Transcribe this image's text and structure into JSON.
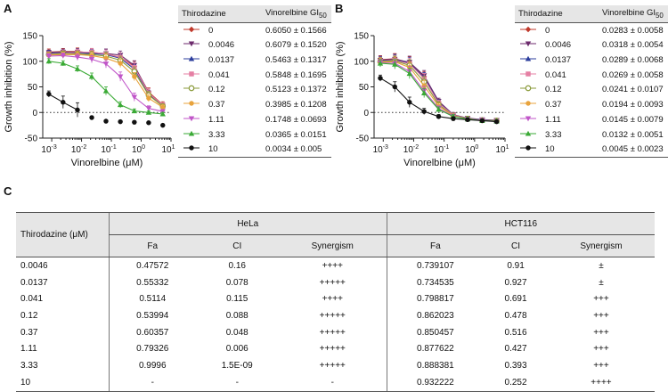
{
  "panels": {
    "a": "A",
    "b": "B",
    "c": "C"
  },
  "chart_data": [
    {
      "type": "line",
      "panel": "A",
      "ylabel": "Growth inhibition (%)",
      "xlabel": "Vinorelbine (μM)",
      "xscale": "log",
      "xlim": [
        0.0005,
        10
      ],
      "ylim": [
        -50,
        150
      ],
      "yticks": [
        -50,
        0,
        50,
        100,
        150
      ],
      "xticks": [
        {
          "value": 0.001,
          "base": "10",
          "exp": "-3"
        },
        {
          "value": 0.01,
          "base": "10",
          "exp": "-2"
        },
        {
          "value": 0.1,
          "base": "10",
          "exp": "-1"
        },
        {
          "value": 1,
          "base": "10",
          "exp": "0"
        },
        {
          "value": 10,
          "base": "10",
          "exp": "1"
        }
      ],
      "x": [
        0.0008,
        0.0024,
        0.0073,
        0.022,
        0.066,
        0.2,
        0.59,
        1.78,
        5.3
      ],
      "legend_title": "Thirodazine",
      "legend_value_title": "Vinorelbine GI",
      "legend_value_sub": "50",
      "series": [
        {
          "name": "0",
          "color": "#c0392b",
          "marker": "diamond",
          "gi50": "0.6050 ± 0.1566",
          "values": [
            118,
            119,
            119,
            116,
            114,
            108,
            90,
            40,
            15
          ],
          "err": [
            6,
            6,
            7,
            9,
            8,
            8,
            10,
            8,
            6
          ]
        },
        {
          "name": "0.0046",
          "color": "#6c2a6c",
          "marker": "triangle-down",
          "gi50": "0.6079 ± 0.1520",
          "values": [
            117,
            118,
            118,
            117,
            115,
            112,
            92,
            38,
            14
          ],
          "err": [
            5,
            6,
            7,
            8,
            9,
            8,
            9,
            8,
            5
          ]
        },
        {
          "name": "0.0137",
          "color": "#2b3d9c",
          "marker": "triangle-up",
          "gi50": "0.5463 ± 0.1317",
          "values": [
            116,
            117,
            116,
            115,
            113,
            106,
            85,
            36,
            13
          ],
          "err": [
            5,
            5,
            6,
            8,
            9,
            8,
            9,
            7,
            5
          ]
        },
        {
          "name": "0.041",
          "color": "#e57fa3",
          "marker": "square",
          "gi50": "0.5848 ± 0.1695",
          "values": [
            114,
            116,
            117,
            118,
            114,
            108,
            88,
            38,
            14
          ],
          "err": [
            5,
            6,
            6,
            7,
            8,
            8,
            9,
            8,
            5
          ]
        },
        {
          "name": "0.12",
          "color": "#8a9a3a",
          "marker": "circle-open",
          "gi50": "0.5123 ± 0.1372",
          "values": [
            113,
            115,
            114,
            113,
            110,
            102,
            80,
            34,
            12
          ],
          "err": [
            5,
            5,
            6,
            7,
            8,
            8,
            9,
            7,
            5
          ]
        },
        {
          "name": "0.37",
          "color": "#e8a33c",
          "marker": "circle",
          "gi50": "0.3985 ± 0.1208",
          "values": [
            112,
            113,
            113,
            111,
            106,
            96,
            70,
            28,
            10
          ],
          "err": [
            5,
            5,
            6,
            7,
            8,
            8,
            8,
            7,
            5
          ]
        },
        {
          "name": "1.11",
          "color": "#c055c8",
          "marker": "triangle-down",
          "gi50": "0.1748 ± 0.0693",
          "values": [
            110,
            111,
            108,
            104,
            95,
            70,
            30,
            8,
            2
          ],
          "err": [
            5,
            5,
            6,
            7,
            8,
            9,
            8,
            5,
            4
          ]
        },
        {
          "name": "3.33",
          "color": "#3aaa35",
          "marker": "triangle-up",
          "gi50": "0.0365 ± 0.0151",
          "values": [
            100,
            96,
            85,
            70,
            42,
            15,
            3,
            0,
            -3
          ],
          "err": [
            5,
            5,
            6,
            7,
            8,
            6,
            4,
            3,
            3
          ]
        },
        {
          "name": "10",
          "color": "#111111",
          "marker": "circle",
          "gi50": "0.0034 ± 0.005",
          "values": [
            36,
            20,
            5,
            -10,
            -17,
            -18,
            -19,
            -20,
            -25
          ],
          "err": [
            6,
            12,
            14,
            3,
            2,
            2,
            2,
            2,
            2
          ]
        }
      ]
    },
    {
      "type": "line",
      "panel": "B",
      "ylabel": "Growth inhibition (%)",
      "xlabel": "Vinorelbine (μM)",
      "xscale": "log",
      "xlim": [
        0.0005,
        10
      ],
      "ylim": [
        -50,
        150
      ],
      "yticks": [
        -50,
        0,
        50,
        100,
        150
      ],
      "xticks": [
        {
          "value": 0.001,
          "base": "10",
          "exp": "-3"
        },
        {
          "value": 0.01,
          "base": "10",
          "exp": "-2"
        },
        {
          "value": 0.1,
          "base": "10",
          "exp": "-1"
        },
        {
          "value": 1,
          "base": "10",
          "exp": "0"
        },
        {
          "value": 10,
          "base": "10",
          "exp": "1"
        }
      ],
      "x": [
        0.0008,
        0.0024,
        0.0073,
        0.022,
        0.066,
        0.2,
        0.59,
        1.78,
        5.3
      ],
      "legend_title": "Thirodazine",
      "legend_value_title": "Vinorelbine GI",
      "legend_value_sub": "50",
      "series": [
        {
          "name": "0",
          "color": "#c0392b",
          "marker": "diamond",
          "gi50": "0.0283 ± 0.0058",
          "values": [
            103,
            105,
            97,
            70,
            20,
            -5,
            -12,
            -15,
            -16
          ],
          "err": [
            8,
            10,
            12,
            10,
            6,
            4,
            3,
            3,
            3
          ]
        },
        {
          "name": "0.0046",
          "color": "#6c2a6c",
          "marker": "triangle-down",
          "gi50": "0.0318 ± 0.0054",
          "values": [
            102,
            104,
            98,
            72,
            22,
            -4,
            -11,
            -14,
            -15
          ],
          "err": [
            8,
            10,
            12,
            10,
            6,
            4,
            3,
            3,
            3
          ]
        },
        {
          "name": "0.0137",
          "color": "#2b3d9c",
          "marker": "triangle-up",
          "gi50": "0.0289 ± 0.0068",
          "values": [
            101,
            103,
            96,
            68,
            19,
            -5,
            -12,
            -14,
            -16
          ],
          "err": [
            8,
            9,
            11,
            10,
            6,
            4,
            3,
            3,
            3
          ]
        },
        {
          "name": "0.041",
          "color": "#e57fa3",
          "marker": "square",
          "gi50": "0.0269 ± 0.0058",
          "values": [
            100,
            102,
            95,
            66,
            18,
            -5,
            -12,
            -15,
            -16
          ],
          "err": [
            8,
            9,
            11,
            10,
            6,
            4,
            3,
            3,
            3
          ]
        },
        {
          "name": "0.12",
          "color": "#8a9a3a",
          "marker": "circle-open",
          "gi50": "0.0241 ± 0.0107",
          "values": [
            99,
            101,
            92,
            60,
            15,
            -6,
            -12,
            -15,
            -16
          ],
          "err": [
            8,
            9,
            11,
            10,
            6,
            4,
            3,
            3,
            3
          ]
        },
        {
          "name": "0.37",
          "color": "#e8a33c",
          "marker": "circle",
          "gi50": "0.0194 ± 0.0093",
          "values": [
            98,
            99,
            88,
            52,
            12,
            -6,
            -13,
            -15,
            -17
          ],
          "err": [
            8,
            9,
            11,
            10,
            6,
            4,
            3,
            3,
            3
          ]
        },
        {
          "name": "1.11",
          "color": "#c055c8",
          "marker": "triangle-down",
          "gi50": "0.0145 ± 0.0079",
          "values": [
            97,
            96,
            80,
            42,
            8,
            -7,
            -13,
            -15,
            -17
          ],
          "err": [
            7,
            9,
            10,
            9,
            5,
            4,
            3,
            3,
            3
          ]
        },
        {
          "name": "3.33",
          "color": "#3aaa35",
          "marker": "triangle-up",
          "gi50": "0.0132 ± 0.0051",
          "values": [
            96,
            94,
            76,
            38,
            6,
            -8,
            -13,
            -16,
            -17
          ],
          "err": [
            7,
            9,
            10,
            9,
            5,
            4,
            3,
            3,
            3
          ]
        },
        {
          "name": "10",
          "color": "#111111",
          "marker": "circle",
          "gi50": "0.0045 ± 0.0023",
          "values": [
            67,
            50,
            20,
            2,
            -8,
            -12,
            -14,
            -16,
            -18
          ],
          "err": [
            6,
            10,
            10,
            6,
            4,
            3,
            3,
            3,
            3
          ]
        }
      ]
    },
    {
      "type": "table",
      "panel": "C",
      "row_header": "Thirodazine (μM)",
      "groups": [
        "HeLa",
        "HCT116"
      ],
      "columns": [
        "Fa",
        "CI",
        "Synergism",
        "Fa",
        "CI",
        "Synergism"
      ],
      "rows": [
        [
          "0.0046",
          "0.47572",
          "0.16",
          "++++",
          "0.739107",
          "0.91",
          "±"
        ],
        [
          "0.0137",
          "0.55332",
          "0.078",
          "+++++",
          "0.734535",
          "0.927",
          "±"
        ],
        [
          "0.041",
          "0.5114",
          "0.115",
          "++++",
          "0.798817",
          "0.691",
          "+++"
        ],
        [
          "0.12",
          "0.53994",
          "0.088",
          "+++++",
          "0.862023",
          "0.478",
          "+++"
        ],
        [
          "0.37",
          "0.60357",
          "0.048",
          "+++++",
          "0.850457",
          "0.516",
          "+++"
        ],
        [
          "1.11",
          "0.79326",
          "0.006",
          "+++++",
          "0.877622",
          "0.427",
          "+++"
        ],
        [
          "3.33",
          "0.9996",
          "1.5E-09",
          "+++++",
          "0.888381",
          "0.393",
          "+++"
        ],
        [
          "10",
          "-",
          "-",
          "-",
          "0.932222",
          "0.252",
          "++++"
        ]
      ]
    }
  ]
}
